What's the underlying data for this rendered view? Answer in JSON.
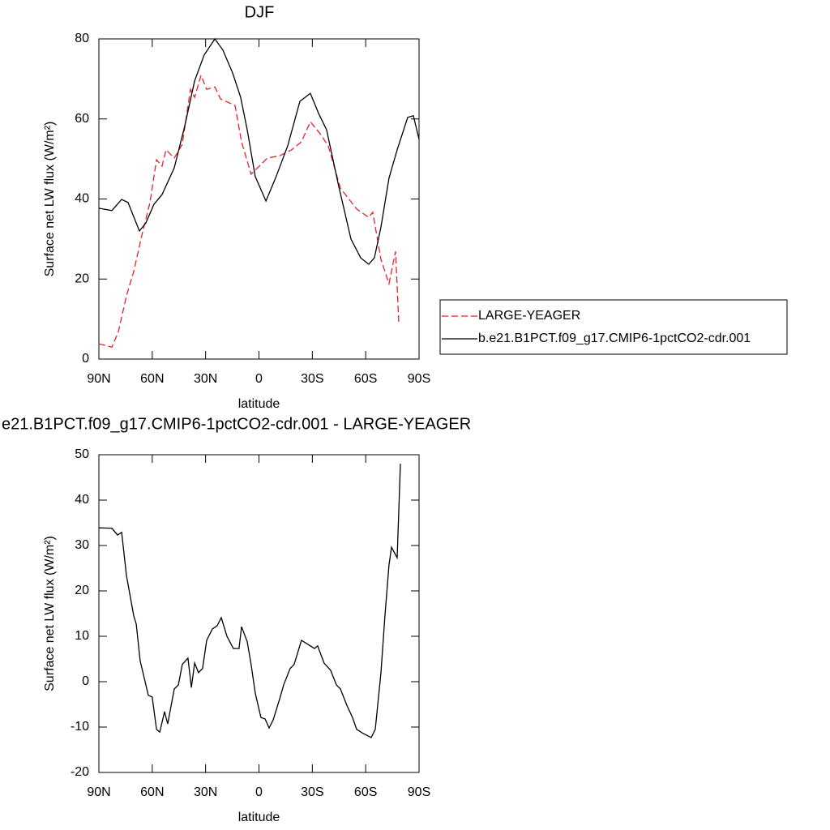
{
  "chart_data": [
    {
      "type": "line",
      "title": "DJF",
      "xlabel": "latitude",
      "ylabel": "Surface net LW flux (W/m²)",
      "xlim": [
        90,
        -90
      ],
      "xticks": [
        {
          "value": 90,
          "label": "90N"
        },
        {
          "value": 60,
          "label": "60N"
        },
        {
          "value": 30,
          "label": "30N"
        },
        0,
        {
          "value": -30,
          "label": "30S"
        },
        {
          "value": -60,
          "label": "60S"
        },
        {
          "value": -90,
          "label": "90S"
        }
      ],
      "ylim": [
        0,
        80
      ],
      "yticks": [
        0,
        20,
        40,
        60,
        80
      ],
      "legend": "right",
      "series": [
        {
          "name": "LARGE-YEAGER",
          "color": "#e8202a",
          "style": "dashed",
          "x": [
            90,
            82.7,
            79.1,
            74.5,
            70.4,
            65.8,
            61.3,
            57.6,
            54.5,
            52.2,
            47.6,
            43.1,
            38.5,
            36.2,
            32.6,
            29.4,
            24.8,
            21.6,
            13.5,
            9.8,
            4.4,
            -0.2,
            -4.7,
            -11.6,
            -18.4,
            -23.9,
            -28.9,
            -34.4,
            -38.9,
            -45.8,
            -54.9,
            -61.7,
            -64,
            -68.6,
            -73.1,
            -76.8,
            -78.6
          ],
          "values": [
            3.8,
            3,
            6.7,
            15.8,
            21.9,
            31,
            39.1,
            49.8,
            48.2,
            52.3,
            50.2,
            53.7,
            67.4,
            65.4,
            70.9,
            67.4,
            68,
            65,
            63.4,
            54.3,
            46.2,
            48.2,
            50.2,
            50.8,
            52.3,
            54.3,
            59.3,
            56.3,
            53.3,
            42.7,
            37.5,
            35.4,
            36.7,
            24.9,
            18.8,
            26.9,
            9.1
          ]
        },
        {
          "name": "b.e21.B1PCT.f09_g17.CMIP6-1pctCO2-cdr.001",
          "color": "#000000",
          "style": "solid",
          "x": [
            90,
            82.7,
            77.2,
            73.6,
            67.2,
            63.6,
            59,
            54.5,
            47.6,
            41.7,
            36.2,
            30.8,
            24.8,
            20.3,
            14.8,
            10.3,
            6.6,
            2.1,
            -3.9,
            -9.3,
            -16.2,
            -23,
            -28.9,
            -33.5,
            -38,
            -44.9,
            -51.7,
            -57.2,
            -61.7,
            -64.9,
            -68.6,
            -73.1,
            -77.7,
            -83.6,
            -86.8,
            -90
          ],
          "values": [
            37.7,
            37.1,
            39.9,
            39.1,
            32,
            34,
            38.7,
            41.1,
            47.8,
            58.3,
            69.5,
            76,
            80,
            77.2,
            71.5,
            65.4,
            57.3,
            45.6,
            39.5,
            45.2,
            53.3,
            64.4,
            66.4,
            61.4,
            57.3,
            43.1,
            30,
            25.3,
            23.7,
            25.3,
            33,
            45.2,
            52.3,
            60.4,
            60.8,
            54.9
          ]
        }
      ]
    },
    {
      "type": "line",
      "title": "e21.B1PCT.f09_g17.CMIP6-1pctCO2-cdr.001 - LARGE-YEAGER",
      "xlabel": "latitude",
      "ylabel": "Surface net LW flux (W/m²)",
      "xlim": [
        90,
        -90
      ],
      "xticks": [
        {
          "value": 90,
          "label": "90N"
        },
        {
          "value": 60,
          "label": "60N"
        },
        {
          "value": 30,
          "label": "30N"
        },
        0,
        {
          "value": -30,
          "label": "30S"
        },
        {
          "value": -60,
          "label": "60S"
        },
        {
          "value": -90,
          "label": "90S"
        }
      ],
      "ylim": [
        -20,
        50
      ],
      "yticks": [
        -20,
        -10,
        0,
        10,
        20,
        30,
        40,
        50
      ],
      "series": [
        {
          "color": "#000000",
          "style": "solid",
          "x": [
            90,
            82.7,
            79.5,
            77.2,
            74.5,
            70.4,
            69,
            66.8,
            62.2,
            60,
            57.6,
            55.8,
            53.1,
            51.3,
            47.6,
            45.3,
            43.1,
            39.9,
            38,
            36.2,
            34,
            31.7,
            29.4,
            26.2,
            23.5,
            21.2,
            18,
            14.4,
            11.2,
            9.8,
            6.6,
            4.4,
            2.1,
            -1.1,
            -3.4,
            -5.7,
            -8,
            -11.6,
            -13.9,
            -17.5,
            -19.8,
            -23.9,
            -27.6,
            -31.2,
            -33,
            -36.6,
            -40.3,
            -43.5,
            -45.8,
            -49.4,
            -52.6,
            -54.9,
            -58.5,
            -63.1,
            -65.4,
            -68.6,
            -70.8,
            -73.1,
            -74.5,
            -77.7,
            -79.5
          ],
          "values": [
            33.9,
            33.8,
            32.3,
            32.9,
            23.4,
            14.5,
            12.7,
            4.6,
            -3,
            -3.4,
            -10.5,
            -11.1,
            -6.6,
            -9.3,
            -1.6,
            -0.7,
            3.8,
            5.2,
            -1.3,
            4.1,
            2,
            2.9,
            9.1,
            11.6,
            12.3,
            14.1,
            10,
            7.3,
            7.3,
            12.1,
            8.8,
            3.8,
            -2.5,
            -7.9,
            -8.2,
            -10.2,
            -8.4,
            -3.8,
            -0.7,
            2.9,
            3.8,
            9.1,
            8.2,
            7.3,
            7.9,
            4.1,
            2.5,
            -0.7,
            -1.6,
            -5.2,
            -7.9,
            -10.5,
            -11.4,
            -12.3,
            -10.5,
            2,
            14.5,
            25.7,
            29.6,
            27.3,
            48
          ]
        }
      ]
    }
  ]
}
